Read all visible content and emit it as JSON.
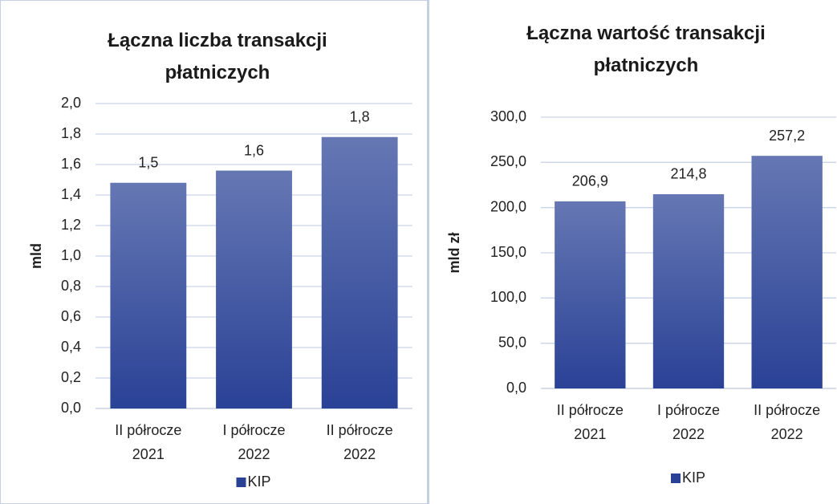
{
  "chart_data": [
    {
      "type": "bar",
      "title": "Łączna liczba transakcji płatniczych",
      "ylabel": "mld",
      "categories": [
        "II półrocze 2021",
        "I półrocze 2022",
        "II półrocze 2022"
      ],
      "series": [
        {
          "name": "KIP",
          "color": "#2a4296",
          "values": [
            1.48,
            1.56,
            1.78
          ],
          "value_labels": [
            "1,5",
            "1,6",
            "1,8"
          ]
        }
      ],
      "ylim": [
        0,
        2
      ],
      "yticks": [
        {
          "value": 0,
          "label": "0,0"
        },
        {
          "value": 0.2,
          "label": "0,2"
        },
        {
          "value": 0.4,
          "label": "0,4"
        },
        {
          "value": 0.6,
          "label": "0,6"
        },
        {
          "value": 0.8,
          "label": "0,8"
        },
        {
          "value": 1.0,
          "label": "1,0"
        },
        {
          "value": 1.2,
          "label": "1,2"
        },
        {
          "value": 1.4,
          "label": "1,4"
        },
        {
          "value": 1.6,
          "label": "1,6"
        },
        {
          "value": 1.8,
          "label": "1,8"
        },
        {
          "value": 2.0,
          "label": "2,0"
        }
      ],
      "grid": true,
      "legend": "bottom"
    },
    {
      "type": "bar",
      "title": "Łączna wartość transakcji płatniczych",
      "ylabel": "mld zł",
      "categories": [
        "II półrocze 2021",
        "I półrocze 2022",
        "II półrocze 2022"
      ],
      "series": [
        {
          "name": "KIP",
          "color": "#2a4296",
          "values": [
            206.9,
            214.8,
            257.2
          ],
          "value_labels": [
            "206,9",
            "214,8",
            "257,2"
          ]
        }
      ],
      "ylim": [
        0,
        300
      ],
      "yticks": [
        {
          "value": 0,
          "label": "0,0"
        },
        {
          "value": 50,
          "label": "50,0"
        },
        {
          "value": 100,
          "label": "100,0"
        },
        {
          "value": 150,
          "label": "150,0"
        },
        {
          "value": 200,
          "label": "200,0"
        },
        {
          "value": 250,
          "label": "250,0"
        },
        {
          "value": 300,
          "label": "300,0"
        }
      ],
      "grid": true,
      "legend": "bottom"
    }
  ]
}
